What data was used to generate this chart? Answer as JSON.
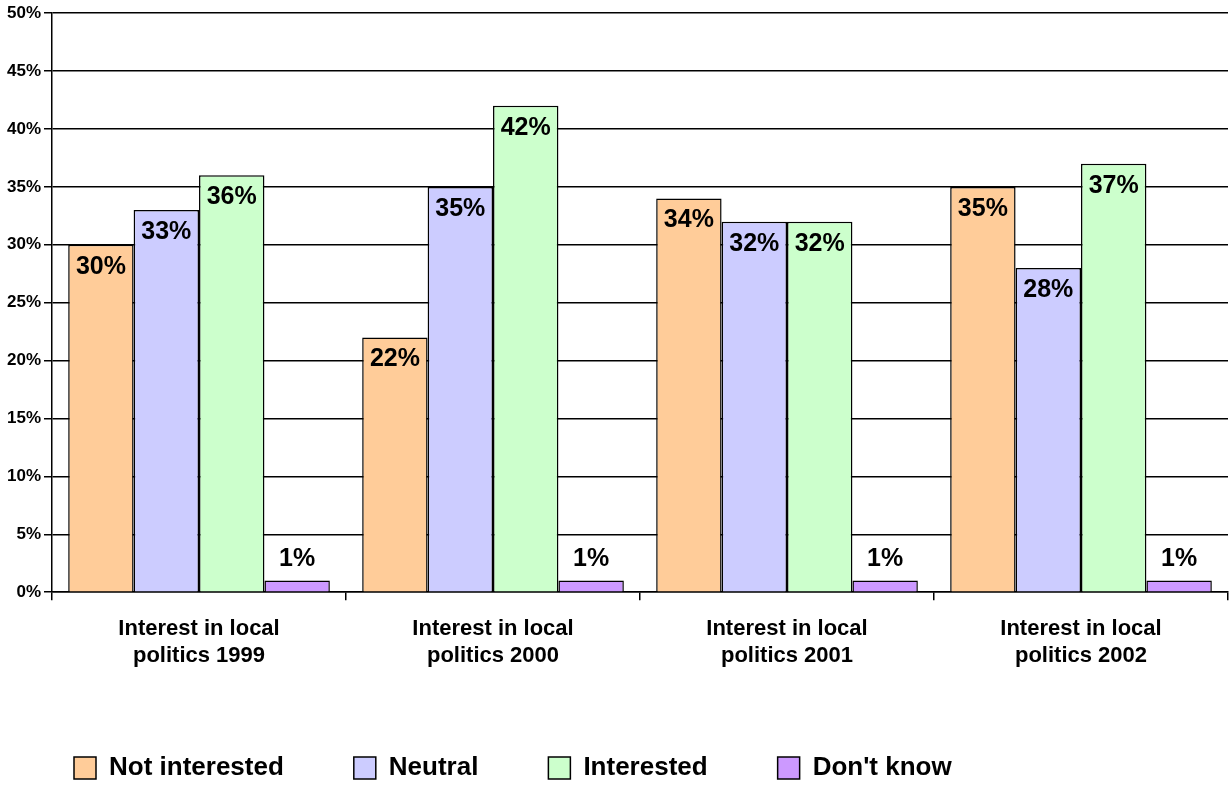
{
  "chart_data": {
    "type": "bar",
    "categories": [
      "Interest in local politics 1999",
      "Interest in local politics 2000",
      "Interest in local politics 2001",
      "Interest in local politics 2002"
    ],
    "series": [
      {
        "name": "Not interested",
        "color": "#ffcc99",
        "values": [
          30,
          22,
          34,
          35
        ],
        "value_labels": [
          "30%",
          "22%",
          "34%",
          "35%"
        ]
      },
      {
        "name": "Neutral",
        "color": "#ccccff",
        "values": [
          33,
          35,
          32,
          28
        ],
        "value_labels": [
          "33%",
          "35%",
          "32%",
          "28%"
        ]
      },
      {
        "name": "Interested",
        "color": "#ccffcc",
        "values": [
          36,
          42,
          32,
          37
        ],
        "value_labels": [
          "36%",
          "42%",
          "32%",
          "37%"
        ]
      },
      {
        "name": "Don't know",
        "color": "#cc99ff",
        "values": [
          1,
          1,
          1,
          1
        ],
        "value_labels": [
          "1%",
          "1%",
          "1%",
          "1%"
        ]
      }
    ],
    "ylim": [
      0,
      50
    ],
    "yticks": [
      {
        "value": 0,
        "label": "0%"
      },
      {
        "value": 5,
        "label": "5%"
      },
      {
        "value": 10,
        "label": "10%"
      },
      {
        "value": 15,
        "label": "15%"
      },
      {
        "value": 20,
        "label": "20%"
      },
      {
        "value": 25,
        "label": "25%"
      },
      {
        "value": 30,
        "label": "30%"
      },
      {
        "value": 35,
        "label": "35%"
      },
      {
        "value": 40,
        "label": "40%"
      },
      {
        "value": 45,
        "label": "45%"
      },
      {
        "value": 50,
        "label": "50%"
      }
    ],
    "grid": "y",
    "legend": "bottom"
  }
}
